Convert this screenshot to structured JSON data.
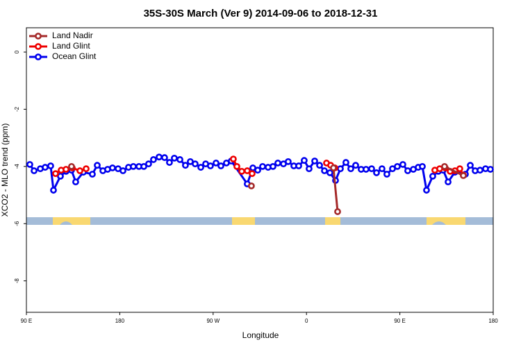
{
  "chart_data": {
    "type": "line",
    "title": "35S-30S March (Ver 9)   2014-09-06 to 2018-12-31",
    "x_label": "Longitude",
    "y_label": "XCO2 - MLO trend (ppm)",
    "xlim": [
      90,
      540
    ],
    "xticks": [
      {
        "value": 90,
        "label": "90 E"
      },
      180,
      {
        "value": 270,
        "label": "90 W"
      },
      {
        "value": 360,
        "label": "0"
      },
      {
        "value": 450,
        "label": "90 E"
      },
      {
        "value": 540,
        "label": "180"
      }
    ],
    "ylim": [
      -9.1,
      0.85
    ],
    "yticks": [
      0,
      -2,
      -4,
      -6,
      -8
    ],
    "legend": "top-left",
    "series": [
      {
        "name": "Ocean Glint",
        "color": "#0000ee",
        "x": [
          93.3,
          97.4,
          103.4,
          108.1,
          113.4,
          116.1,
          122.8,
          128.2,
          133.5,
          137.5,
          144.9,
          153.6,
          158.3,
          163.7,
          168.3,
          173.0,
          178.4,
          183.1,
          188.4,
          193.1,
          198.5,
          203.2,
          207.8,
          212.5,
          217.9,
          223.2,
          227.9,
          232.6,
          238.0,
          243.3,
          248.0,
          252.7,
          258.1,
          262.8,
          267.4,
          272.8,
          277.5,
          282.8,
          287.5,
          302.9,
          308.3,
          313.0,
          317.7,
          323.0,
          327.7,
          332.4,
          337.8,
          342.4,
          347.8,
          352.5,
          357.8,
          362.5,
          367.9,
          372.6,
          377.3,
          382.6,
          388.0,
          392.7,
          398.0,
          402.7,
          407.4,
          412.7,
          417.4,
          422.8,
          427.5,
          432.8,
          437.5,
          442.9,
          447.6,
          452.9,
          457.6,
          463.0,
          467.7,
          471.7,
          475.7,
          481.7,
          487.1,
          491.8,
          496.5,
          503.1,
          513.2,
          517.9,
          522.6,
          527.3,
          532.6,
          537.3
        ],
        "values": [
          -3.93,
          -4.15,
          -4.08,
          -4.03,
          -3.98,
          -4.83,
          -4.34,
          -4.17,
          -4.13,
          -4.54,
          -4.2,
          -4.27,
          -3.96,
          -4.15,
          -4.1,
          -4.05,
          -4.08,
          -4.15,
          -4.03,
          -4.0,
          -4.0,
          -4.0,
          -3.91,
          -3.76,
          -3.67,
          -3.69,
          -3.86,
          -3.71,
          -3.76,
          -3.96,
          -3.83,
          -3.91,
          -4.03,
          -3.91,
          -3.98,
          -3.88,
          -3.98,
          -3.88,
          -3.81,
          -4.61,
          -4.05,
          -4.13,
          -4.0,
          -4.03,
          -4.0,
          -3.88,
          -3.91,
          -3.83,
          -3.98,
          -3.98,
          -3.79,
          -4.08,
          -3.81,
          -3.96,
          -4.15,
          -4.22,
          -4.49,
          -4.08,
          -3.86,
          -4.08,
          -3.96,
          -4.1,
          -4.1,
          -4.08,
          -4.22,
          -4.08,
          -4.27,
          -4.08,
          -4.0,
          -3.93,
          -4.15,
          -4.1,
          -4.03,
          -4.0,
          -4.83,
          -4.34,
          -4.17,
          -4.13,
          -4.54,
          -4.2,
          -4.27,
          -3.96,
          -4.15,
          -4.13,
          -4.08,
          -4.1
        ]
      },
      {
        "name": "Land Glint",
        "color": "#ee0000",
        "x": [
          118.1,
          123.5,
          128.2,
          134.2,
          141.6,
          147.6,
          null,
          289.5,
          292.9,
          297.6,
          302.9,
          307.6,
          null,
          379.3,
          383.3,
          387.3,
          null,
          483.7,
          488.4,
          493.8,
          498.5,
          503.1,
          507.8,
          511.2
        ],
        "values": [
          -4.25,
          -4.13,
          -4.1,
          -4.05,
          -4.15,
          -4.08,
          null,
          -3.74,
          -4.0,
          -4.17,
          -4.15,
          -4.25,
          null,
          -3.88,
          -3.96,
          -4.05,
          null,
          -4.13,
          -4.08,
          -4.05,
          -4.17,
          -4.15,
          -4.08,
          -4.3
        ]
      },
      {
        "name": "Land Nadir",
        "color": "#a52a2a",
        "x": [
          133.5,
          null,
          306.9,
          null,
          386.0,
          390.0,
          null,
          493.1,
          511.2
        ],
        "values": [
          -4.0,
          null,
          -4.68,
          null,
          -4.05,
          -5.58,
          null,
          -4.0,
          -4.32
        ]
      }
    ]
  }
}
